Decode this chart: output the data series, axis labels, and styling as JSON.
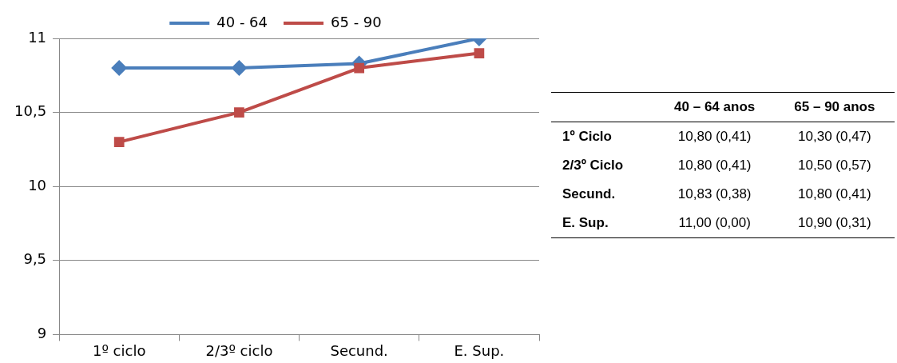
{
  "chart_data": {
    "type": "line",
    "categories": [
      "1º ciclo",
      "2/3º ciclo",
      "Secund.",
      "E. Sup."
    ],
    "series": [
      {
        "name": "40 - 64",
        "color": "#4a7ebb",
        "marker": "diamond",
        "values": [
          10.8,
          10.8,
          10.83,
          11
        ]
      },
      {
        "name": "65 - 90",
        "color": "#be4b48",
        "marker": "square",
        "values": [
          10.3,
          10.5,
          10.8,
          10.9
        ]
      }
    ],
    "ylim": [
      9,
      11
    ],
    "yticks": [
      9,
      {
        "value": 9.5,
        "label": "9,5"
      },
      10,
      {
        "value": 10.5,
        "label": "10,5"
      },
      11
    ],
    "grid": "y",
    "legend": "top",
    "line_style": "solid",
    "annotations": [
      "40 – 64 anos",
      "65 – 90 anos",
      "1º Ciclo",
      "10,80 (0,41)",
      "10,30 (0,47)",
      "2/3º Ciclo",
      "10,80 (0,41)",
      "10,50 (0,57)",
      "Secund.",
      "10,83 (0,38)",
      "10,80 (0,41)",
      "E. Sup.",
      "11,00 (0,00)",
      "10,90 (0,31)"
    ]
  }
}
